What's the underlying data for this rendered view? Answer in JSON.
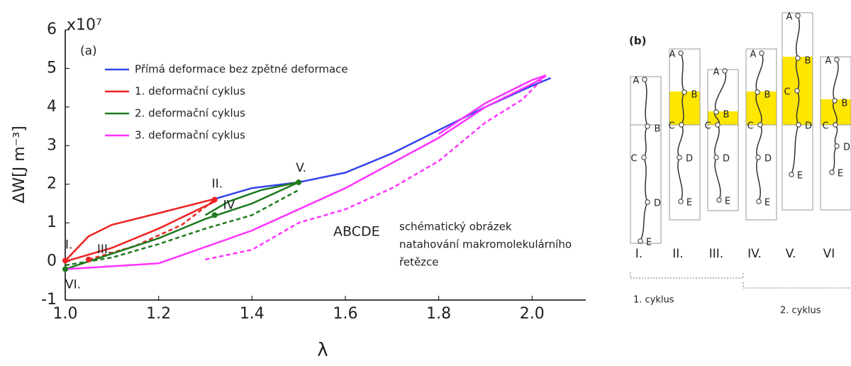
{
  "chart_data": {
    "type": "line",
    "panel_label": "(a)",
    "y_multiplier": "x10⁷",
    "xlabel": "λ",
    "ylabel": "ΔW[J m⁻³]",
    "xlim": [
      1.0,
      2.115
    ],
    "ylim": [
      -1,
      6
    ],
    "xticks": [
      {
        "value": 1.0,
        "label": "1.0"
      },
      {
        "value": 1.2,
        "label": "1.2"
      },
      {
        "value": 1.4,
        "label": "1.4"
      },
      {
        "value": 1.6,
        "label": "1.6"
      },
      {
        "value": 1.8,
        "label": "1.8"
      },
      {
        "value": 2.0,
        "label": "2.0"
      }
    ],
    "yticks": [
      -1,
      0,
      1,
      2,
      3,
      4,
      5,
      6
    ],
    "series": [
      {
        "name": "Přímá deformace bez zpětné deformace",
        "color": "#3344ee",
        "segments": [
          {
            "x": [
              1.32,
              1.4,
              1.5,
              1.6,
              1.7,
              1.8,
              1.9,
              2.0,
              2.04
            ],
            "y": [
              1.62,
              1.9,
              2.05,
              2.3,
              2.8,
              3.4,
              4.0,
              4.55,
              4.75
            ],
            "dash": false
          }
        ]
      },
      {
        "name": "1. deformační cyklus",
        "color": "#ee2222",
        "segments": [
          {
            "x": [
              1.0,
              1.05,
              1.1,
              1.2,
              1.32
            ],
            "y": [
              0.02,
              0.65,
              0.95,
              1.25,
              1.62
            ],
            "dash": false
          },
          {
            "x": [
              1.0,
              1.1,
              1.2,
              1.32
            ],
            "y": [
              0.0,
              0.35,
              0.85,
              1.55
            ],
            "dash": false
          },
          {
            "x": [
              1.05,
              1.15,
              1.25,
              1.32
            ],
            "y": [
              0.05,
              0.4,
              0.95,
              1.6
            ],
            "dash": true
          }
        ]
      },
      {
        "name": "2. deformační cyklus",
        "color": "#1e7a1e",
        "segments": [
          {
            "x": [
              1.0,
              1.1,
              1.2,
              1.3,
              1.4,
              1.5
            ],
            "y": [
              -0.2,
              0.2,
              0.6,
              1.1,
              1.5,
              2.05
            ],
            "dash": false
          },
          {
            "x": [
              1.3,
              1.35,
              1.42,
              1.5
            ],
            "y": [
              1.2,
              1.55,
              1.85,
              2.05
            ],
            "dash": false
          },
          {
            "x": [
              1.0,
              1.1,
              1.2,
              1.3,
              1.4,
              1.5
            ],
            "y": [
              -0.1,
              0.1,
              0.45,
              0.85,
              1.2,
              1.85
            ],
            "dash": true
          }
        ]
      },
      {
        "name": "3. deformační cyklus",
        "color": "#ff33ff",
        "segments": [
          {
            "x": [
              1.0,
              1.2,
              1.4,
              1.6,
              1.8,
              1.9,
              2.0,
              2.03
            ],
            "y": [
              -0.2,
              -0.05,
              0.8,
              1.9,
              3.2,
              4.0,
              4.6,
              4.8
            ],
            "dash": false
          },
          {
            "x": [
              1.8,
              1.9,
              2.0,
              2.03
            ],
            "y": [
              3.3,
              4.1,
              4.7,
              4.82
            ],
            "dash": false
          },
          {
            "x": [
              1.3,
              1.4,
              1.5,
              1.6,
              1.7,
              1.8,
              1.9,
              1.98,
              2.02
            ],
            "y": [
              0.05,
              0.3,
              1.0,
              1.35,
              1.9,
              2.6,
              3.6,
              4.2,
              4.7
            ],
            "dash": true
          }
        ]
      }
    ],
    "point_labels": [
      {
        "label": "I.",
        "x": 1.0,
        "y": 0.02,
        "color": "#ee2222"
      },
      {
        "label": "II.",
        "x": 1.32,
        "y": 1.6,
        "color": "#ee2222"
      },
      {
        "label": "III.",
        "x": 1.05,
        "y": 0.05,
        "color": "#ee2222"
      },
      {
        "label": "IV",
        "x": 1.32,
        "y": 1.2,
        "color": "#1e7a1e"
      },
      {
        "label": "V.",
        "x": 1.5,
        "y": 2.05,
        "color": "#1e7a1e"
      },
      {
        "label": "VI.",
        "x": 1.0,
        "y": -0.2,
        "color": "#1e7a1e"
      }
    ],
    "annotation": {
      "title": "ABCDE",
      "lines": [
        "schématický obrázek",
        "natahování makromolekulárního",
        "řetězce"
      ]
    }
  },
  "diagram": {
    "panel_label": "(b)",
    "chain_labels": [
      "A",
      "B",
      "C",
      "D",
      "E"
    ],
    "columns": [
      "I.",
      "II.",
      "III.",
      "IV.",
      "V.",
      "VI"
    ],
    "cycles": [
      "1. cyklus",
      "2. cyklus"
    ]
  }
}
